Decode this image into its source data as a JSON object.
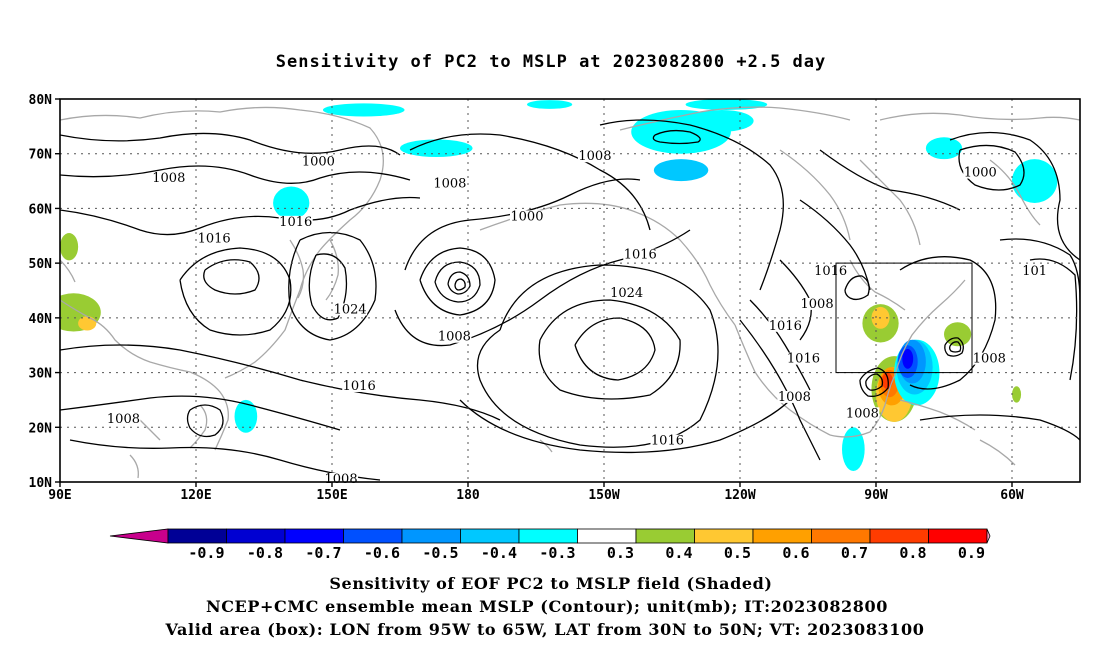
{
  "title": "Sensitivity of PC2 to MSLP at 2023082800 +2.5 day",
  "map": {
    "lat_ticks": [
      "80N",
      "70N",
      "60N",
      "50N",
      "40N",
      "30N",
      "20N",
      "10N"
    ],
    "lon_ticks": [
      "90E",
      "120E",
      "150E",
      "180",
      "150W",
      "120W",
      "90W",
      "60W"
    ],
    "valid_box": {
      "lon_from": "95W",
      "lon_to": "65W",
      "lat_from": "30N",
      "lat_to": "50N"
    },
    "contour_labels": [
      {
        "text": "1000",
        "lon": 147,
        "lat": 68
      },
      {
        "text": "1008",
        "lon": 114,
        "lat": 65
      },
      {
        "text": "1016",
        "lon": 142,
        "lat": 57
      },
      {
        "text": "1016",
        "lon": 124,
        "lat": 54
      },
      {
        "text": "1008",
        "lon": 176,
        "lat": 64
      },
      {
        "text": "1008",
        "lon": 208,
        "lat": 69
      },
      {
        "text": "1000",
        "lon": 193,
        "lat": 58
      },
      {
        "text": "1016",
        "lon": 218,
        "lat": 51
      },
      {
        "text": "1024",
        "lon": 154,
        "lat": 41
      },
      {
        "text": "1024",
        "lon": 215,
        "lat": 44
      },
      {
        "text": "1008",
        "lon": 177,
        "lat": 36
      },
      {
        "text": "1016",
        "lon": 156,
        "lat": 27
      },
      {
        "text": "1016",
        "lon": 250,
        "lat": 38
      },
      {
        "text": "1008",
        "lon": 257,
        "lat": 42
      },
      {
        "text": "1016",
        "lon": 260,
        "lat": 48
      },
      {
        "text": "1016",
        "lon": 254,
        "lat": 32
      },
      {
        "text": "1008",
        "lon": 252,
        "lat": 25
      },
      {
        "text": "1008",
        "lon": 267,
        "lat": 22
      },
      {
        "text": "1016",
        "lon": 224,
        "lat": 17
      },
      {
        "text": "1008",
        "lon": 104,
        "lat": 21
      },
      {
        "text": "1008",
        "lon": 152,
        "lat": 10
      },
      {
        "text": "1008",
        "lon": 295,
        "lat": 32
      },
      {
        "text": "1000",
        "lon": 293,
        "lat": 66
      },
      {
        "text": "101",
        "lon": 305,
        "lat": 48
      }
    ],
    "shaded_patches": [
      {
        "level": "-0.4",
        "color": "#00ffff",
        "lon": 157,
        "lat": 78,
        "rx": 9,
        "ry": 1.2
      },
      {
        "level": "-0.4",
        "color": "#00ffff",
        "lon": 173,
        "lat": 71,
        "rx": 8,
        "ry": 1.6
      },
      {
        "level": "-0.4",
        "color": "#00ffff",
        "lon": 227,
        "lat": 74,
        "rx": 11,
        "ry": 4
      },
      {
        "level": "-0.5",
        "color": "#00c8ff",
        "lon": 227,
        "lat": 67,
        "rx": 6,
        "ry": 2
      },
      {
        "level": "-0.4",
        "color": "#00ffff",
        "lon": 236,
        "lat": 76,
        "rx": 7,
        "ry": 2
      },
      {
        "level": "-0.4",
        "color": "#00ffff",
        "lon": 237,
        "lat": 79,
        "rx": 9,
        "ry": 1
      },
      {
        "level": "-0.4",
        "color": "#00ffff",
        "lon": 285,
        "lat": 71,
        "rx": 4,
        "ry": 2
      },
      {
        "level": "-0.4",
        "color": "#00ffff",
        "lon": 305,
        "lat": 65,
        "rx": 5,
        "ry": 4
      },
      {
        "level": "-0.4",
        "color": "#00ffff",
        "lon": 141,
        "lat": 61,
        "rx": 4,
        "ry": 3
      },
      {
        "level": "-0.4",
        "color": "#00ffff",
        "lon": 131,
        "lat": 22,
        "rx": 2.5,
        "ry": 3
      },
      {
        "level": "-0.4",
        "color": "#00ffff",
        "lon": 265,
        "lat": 16,
        "rx": 2.5,
        "ry": 4
      },
      {
        "level": "-0.4",
        "color": "#00ffff",
        "lon": 198,
        "lat": 79,
        "rx": 5,
        "ry": 0.8
      },
      {
        "level": "0.3",
        "color": "#99cc33",
        "lon": 92,
        "lat": 53,
        "rx": 2,
        "ry": 2.5
      },
      {
        "level": "0.3",
        "color": "#99cc33",
        "lon": 93,
        "lat": 41,
        "rx": 6,
        "ry": 3.5
      },
      {
        "level": "0.4",
        "color": "#ffc832",
        "lon": 96,
        "lat": 39,
        "rx": 2,
        "ry": 1.3
      },
      {
        "level": "0.3",
        "color": "#99cc33",
        "lon": 271,
        "lat": 39,
        "rx": 4,
        "ry": 3.5
      },
      {
        "level": "0.4",
        "color": "#ffc832",
        "lon": 271,
        "lat": 40,
        "rx": 2,
        "ry": 2
      },
      {
        "level": "0.3",
        "color": "#99cc33",
        "lon": 274,
        "lat": 27,
        "rx": 5,
        "ry": 6
      },
      {
        "level": "0.4",
        "color": "#ffc832",
        "lon": 274,
        "lat": 26,
        "rx": 4,
        "ry": 5
      },
      {
        "level": "0.5",
        "color": "#ffa000",
        "lon": 273.5,
        "lat": 27.5,
        "rx": 3,
        "ry": 3.5
      },
      {
        "level": "0.6",
        "color": "#ff7800",
        "lon": 273,
        "lat": 28,
        "rx": 2,
        "ry": 2.5
      },
      {
        "level": "0.7",
        "color": "#ff3c00",
        "lon": 272.5,
        "lat": 28.5,
        "rx": 1.2,
        "ry": 1.5
      },
      {
        "level": "-0.4",
        "color": "#00ffff",
        "lon": 279,
        "lat": 30,
        "rx": 5,
        "ry": 6
      },
      {
        "level": "-0.5",
        "color": "#00c8ff",
        "lon": 278.5,
        "lat": 31,
        "rx": 4,
        "ry": 5
      },
      {
        "level": "-0.6",
        "color": "#0096ff",
        "lon": 278,
        "lat": 32,
        "rx": 3,
        "ry": 4
      },
      {
        "level": "-0.7",
        "color": "#0050ff",
        "lon": 277,
        "lat": 32,
        "rx": 2.2,
        "ry": 3
      },
      {
        "level": "-0.8",
        "color": "#0000ff",
        "lon": 277,
        "lat": 32.5,
        "rx": 1.2,
        "ry": 1.8
      },
      {
        "level": "0.3",
        "color": "#99cc33",
        "lon": 288,
        "lat": 37,
        "rx": 3,
        "ry": 2.2
      },
      {
        "level": "0.3",
        "color": "#99cc33",
        "lon": 301,
        "lat": 26,
        "rx": 1,
        "ry": 1.5
      }
    ]
  },
  "colorbar": {
    "labels": [
      "-0.9",
      "-0.8",
      "-0.7",
      "-0.6",
      "-0.5",
      "-0.4",
      "-0.3",
      "0.3",
      "0.4",
      "0.5",
      "0.6",
      "0.7",
      "0.8",
      "0.9"
    ],
    "colors": [
      "#000096",
      "#0000d2",
      "#0000ff",
      "#0050ff",
      "#0096ff",
      "#00c8ff",
      "#00ffff",
      "#ffffff",
      "#99cc33",
      "#ffc832",
      "#ffa000",
      "#ff7800",
      "#ff3c00",
      "#ff0000"
    ],
    "low_extend_color": "#c8008c",
    "high_extend_color": "#ffa0c8"
  },
  "caption": {
    "line1": "Sensitivity of EOF PC2 to MSLP field (Shaded)",
    "line2": "NCEP+CMC ensemble mean MSLP (Contour); unit(mb); IT:2023082800",
    "line3": "Valid area (box): LON from 95W to 65W, LAT from 30N to 50N; VT: 2023083100"
  }
}
